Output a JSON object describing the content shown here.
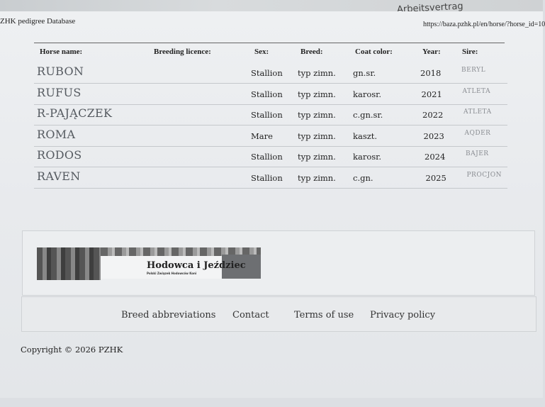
{
  "background_text": "Arbeitsvertrag",
  "header": {
    "title": "ZHK pedigree Database",
    "url": "https://baza.pzhk.pl/en/horse/?horse_id=10"
  },
  "table": {
    "columns": [
      "Horse name:",
      "Breeding licence:",
      "Sex:",
      "Breed:",
      "Coat color:",
      "Year:",
      "Sire:"
    ],
    "rows": [
      {
        "name": "RUBON",
        "licence": "",
        "sex": "Stallion",
        "breed": "typ zimn.",
        "coat": "gn.sr.",
        "year": "2018",
        "sire": "BERYL"
      },
      {
        "name": "RUFUS",
        "licence": "",
        "sex": "Stallion",
        "breed": "typ zimn.",
        "coat": "karosr.",
        "year": "2021",
        "sire": "ATLETA"
      },
      {
        "name": "R-PAJĄCZEK",
        "licence": "",
        "sex": "Stallion",
        "breed": "typ zimn.",
        "coat": "c.gn.sr.",
        "year": "2022",
        "sire": "ATLETA"
      },
      {
        "name": "ROMA",
        "licence": "",
        "sex": "Mare",
        "breed": "typ zimn.",
        "coat": "kaszt.",
        "year": "2023",
        "sire": "AQDER"
      },
      {
        "name": "RODOS",
        "licence": "",
        "sex": "Stallion",
        "breed": "typ zimn.",
        "coat": "karosr.",
        "year": "2024",
        "sire": "BAJER"
      },
      {
        "name": "RAVEN",
        "licence": "",
        "sex": "Stallion",
        "breed": "typ zimn.",
        "coat": "c.gn.",
        "year": "2025",
        "sire": "PROCJON"
      }
    ]
  },
  "banner": {
    "title": "Hodowca i Jeździec",
    "subtitle": "Polski Związek Hodowców Koni"
  },
  "footer": {
    "links": [
      "Breed abbreviations",
      "Contact",
      "Terms of use",
      "Privacy policy"
    ],
    "copyright": "Copyright © 2026 PZHK"
  }
}
